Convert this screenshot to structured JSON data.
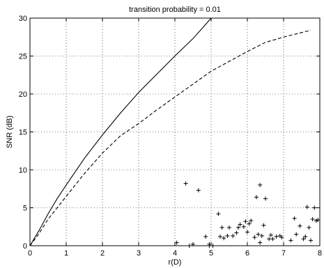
{
  "chart_data": {
    "type": "line",
    "title": "transition probability = 0.01",
    "xlabel": "r(D)",
    "ylabel": "SNR (dB)",
    "xlim": [
      0,
      8
    ],
    "ylim": [
      0,
      30
    ],
    "xticks": [
      0,
      1,
      2,
      3,
      4,
      5,
      6,
      7,
      8
    ],
    "yticks": [
      0,
      5,
      10,
      15,
      20,
      25,
      30
    ],
    "grid": true,
    "series": [
      {
        "style": "solid",
        "color": "#000000",
        "x": [
          0,
          0.25,
          0.5,
          0.75,
          1.0,
          1.5,
          2.0,
          2.5,
          3.0,
          3.5,
          4.0,
          4.5,
          4.8,
          5.0
        ],
        "y": [
          0,
          2.0,
          4.2,
          6.2,
          8.0,
          11.5,
          14.6,
          17.5,
          20.2,
          22.6,
          25.0,
          27.3,
          28.9,
          30.0
        ]
      },
      {
        "style": "dashed",
        "color": "#000000",
        "x": [
          0,
          0.25,
          0.5,
          1.0,
          1.5,
          2.0,
          2.5,
          3.0,
          3.5,
          4.0,
          4.5,
          5.0,
          5.5,
          6.0,
          6.5,
          7.0,
          7.5,
          7.75
        ],
        "y": [
          0,
          1.6,
          3.5,
          6.5,
          9.5,
          12.2,
          14.5,
          16.1,
          17.9,
          19.6,
          21.3,
          23.0,
          24.3,
          25.6,
          26.8,
          27.5,
          28.1,
          28.4
        ]
      },
      {
        "style": "markers",
        "marker": "+",
        "color": "#000000",
        "x": [
          4.05,
          4.3,
          4.5,
          4.65,
          4.85,
          4.95,
          5.05,
          5.2,
          5.25,
          5.3,
          5.35,
          5.45,
          5.5,
          5.6,
          5.7,
          5.75,
          5.8,
          5.9,
          5.95,
          6.0,
          6.05,
          6.1,
          6.2,
          6.25,
          6.3,
          6.35,
          6.4,
          6.45,
          6.5,
          6.6,
          6.65,
          6.7,
          6.8,
          6.9,
          6.95,
          7.2,
          7.3,
          7.35,
          7.45,
          7.55,
          7.6,
          7.65,
          7.7,
          7.75,
          7.8,
          7.85,
          7.9,
          7.95,
          4.95,
          6.35,
          4.4
        ],
        "y": [
          0.4,
          8.2,
          0.2,
          7.3,
          1.2,
          0.2,
          0.0,
          4.2,
          1.2,
          2.4,
          1.0,
          1.3,
          2.4,
          1.3,
          1.7,
          2.4,
          2.8,
          2.5,
          3.2,
          1.8,
          2.9,
          3.3,
          1.1,
          6.4,
          1.5,
          8.0,
          1.3,
          2.7,
          6.2,
          0.9,
          1.4,
          0.9,
          1.2,
          1.3,
          1.1,
          0.7,
          3.6,
          1.5,
          2.6,
          0.9,
          1.2,
          5.1,
          2.4,
          0.7,
          3.5,
          5.0,
          3.3,
          3.4,
          0.0,
          0.4,
          0.0
        ]
      }
    ]
  }
}
